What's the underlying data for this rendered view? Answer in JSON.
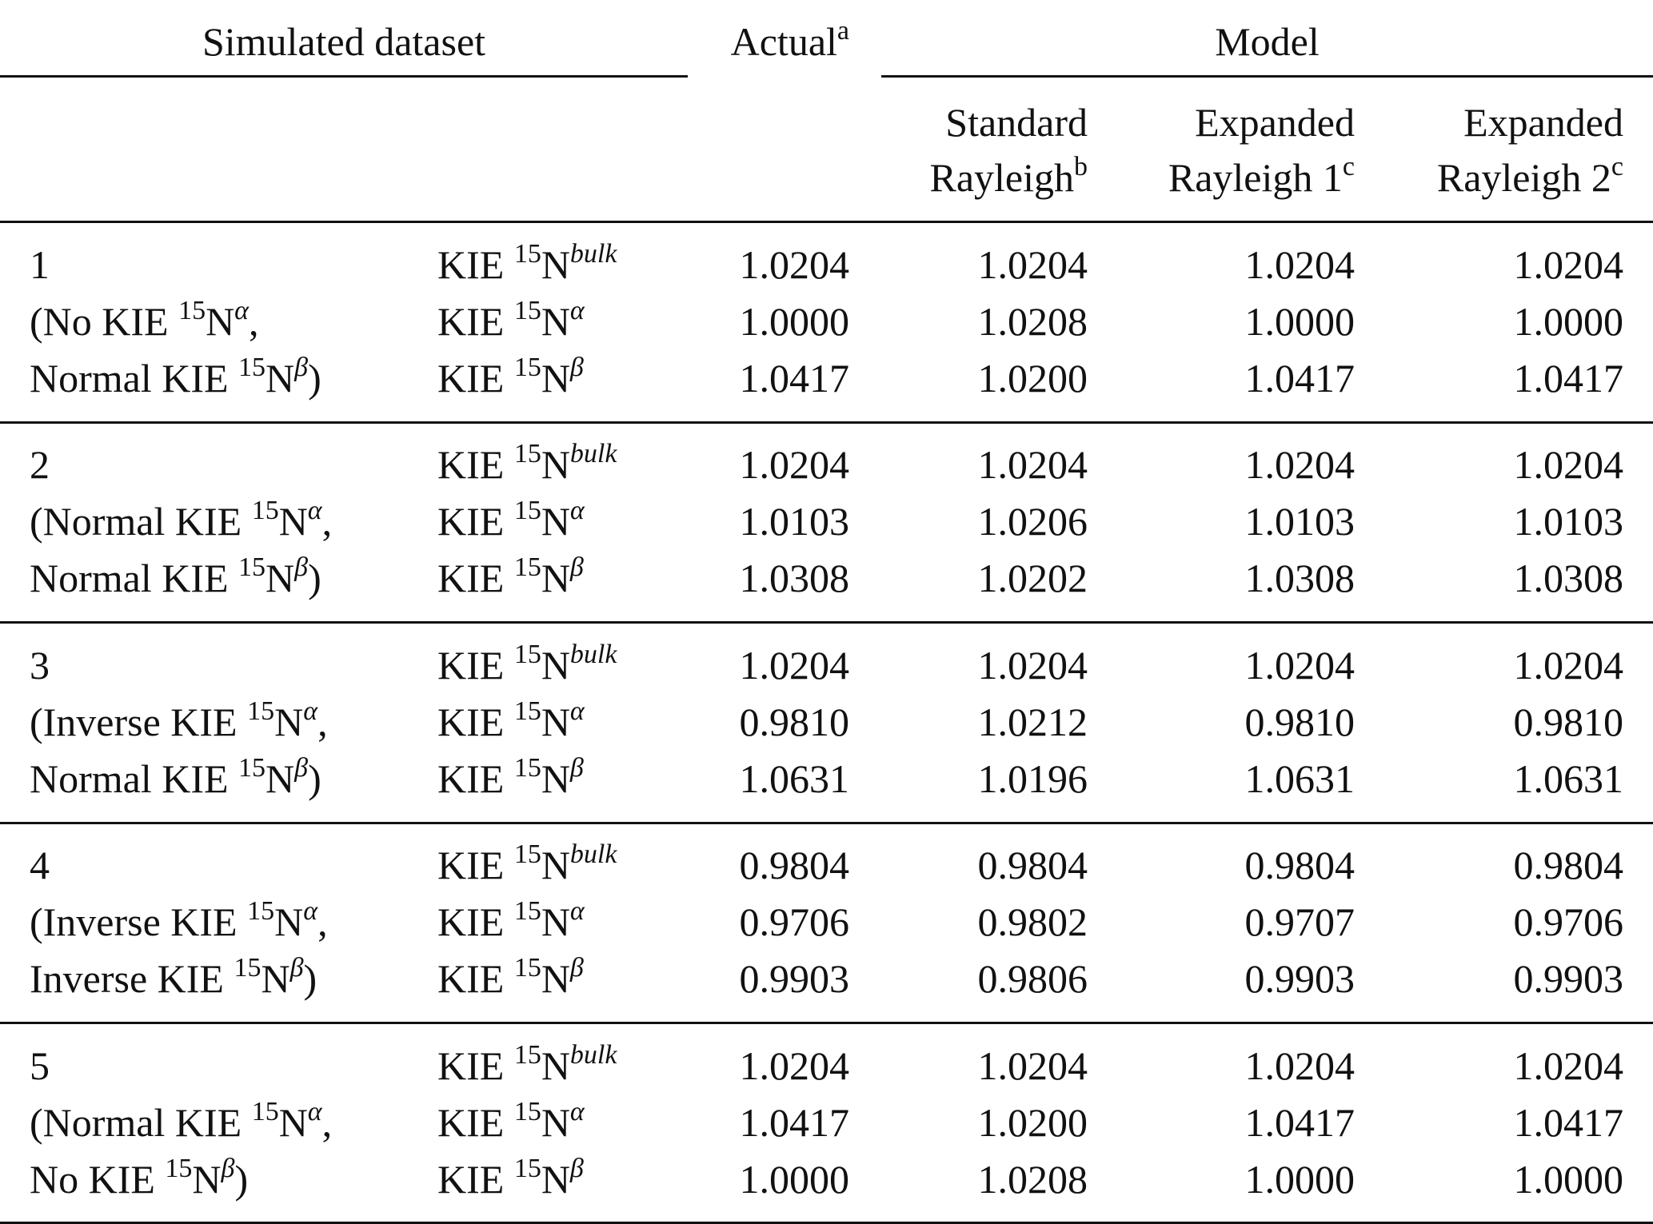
{
  "header": {
    "simulated_dataset": "Simulated dataset",
    "actual": "Actual",
    "actual_note": "a",
    "model": "Model",
    "columns": [
      {
        "line1": "Standard",
        "line2": "Rayleigh",
        "note": "b"
      },
      {
        "line1": "Expanded",
        "line2": "Rayleigh 1",
        "note": "c"
      },
      {
        "line1": "Expanded",
        "line2": "Rayleigh 2",
        "note": "c"
      }
    ]
  },
  "kie_labels": [
    {
      "pre": "KIE ",
      "iso": "15",
      "el": "N",
      "sup": "bulk"
    },
    {
      "pre": "KIE ",
      "iso": "15",
      "el": "N",
      "sup": "α"
    },
    {
      "pre": "KIE ",
      "iso": "15",
      "el": "N",
      "sup": "β"
    }
  ],
  "groups": [
    {
      "id": "1",
      "desc": [
        {
          "pre": "(No KIE ",
          "iso": "15",
          "el": "N",
          "sup": "α",
          "end": ","
        },
        {
          "pre": "Normal KIE ",
          "iso": "15",
          "el": "N",
          "sup": "β",
          "end": ")"
        }
      ],
      "rows": [
        [
          "1.0204",
          "1.0204",
          "1.0204",
          "1.0204"
        ],
        [
          "1.0000",
          "1.0208",
          "1.0000",
          "1.0000"
        ],
        [
          "1.0417",
          "1.0200",
          "1.0417",
          "1.0417"
        ]
      ]
    },
    {
      "id": "2",
      "desc": [
        {
          "pre": "(Normal KIE ",
          "iso": "15",
          "el": "N",
          "sup": "α",
          "end": ","
        },
        {
          "pre": "Normal KIE ",
          "iso": "15",
          "el": "N",
          "sup": "β",
          "end": ")"
        }
      ],
      "rows": [
        [
          "1.0204",
          "1.0204",
          "1.0204",
          "1.0204"
        ],
        [
          "1.0103",
          "1.0206",
          "1.0103",
          "1.0103"
        ],
        [
          "1.0308",
          "1.0202",
          "1.0308",
          "1.0308"
        ]
      ]
    },
    {
      "id": "3",
      "desc": [
        {
          "pre": "(Inverse KIE ",
          "iso": "15",
          "el": "N",
          "sup": "α",
          "end": ","
        },
        {
          "pre": "Normal KIE ",
          "iso": "15",
          "el": "N",
          "sup": "β",
          "end": ")"
        }
      ],
      "rows": [
        [
          "1.0204",
          "1.0204",
          "1.0204",
          "1.0204"
        ],
        [
          "0.9810",
          "1.0212",
          "0.9810",
          "0.9810"
        ],
        [
          "1.0631",
          "1.0196",
          "1.0631",
          "1.0631"
        ]
      ]
    },
    {
      "id": "4",
      "desc": [
        {
          "pre": "(Inverse KIE ",
          "iso": "15",
          "el": "N",
          "sup": "α",
          "end": ","
        },
        {
          "pre": "Inverse KIE ",
          "iso": "15",
          "el": "N",
          "sup": "β",
          "end": ")"
        }
      ],
      "rows": [
        [
          "0.9804",
          "0.9804",
          "0.9804",
          "0.9804"
        ],
        [
          "0.9706",
          "0.9802",
          "0.9707",
          "0.9706"
        ],
        [
          "0.9903",
          "0.9806",
          "0.9903",
          "0.9903"
        ]
      ]
    },
    {
      "id": "5",
      "desc": [
        {
          "pre": "(Normal KIE ",
          "iso": "15",
          "el": "N",
          "sup": "α",
          "end": ","
        },
        {
          "pre": "No KIE ",
          "iso": "15",
          "el": "N",
          "sup": "β",
          "end": ")"
        }
      ],
      "rows": [
        [
          "1.0204",
          "1.0204",
          "1.0204",
          "1.0204"
        ],
        [
          "1.0417",
          "1.0200",
          "1.0417",
          "1.0417"
        ],
        [
          "1.0000",
          "1.0208",
          "1.0000",
          "1.0000"
        ]
      ]
    }
  ]
}
